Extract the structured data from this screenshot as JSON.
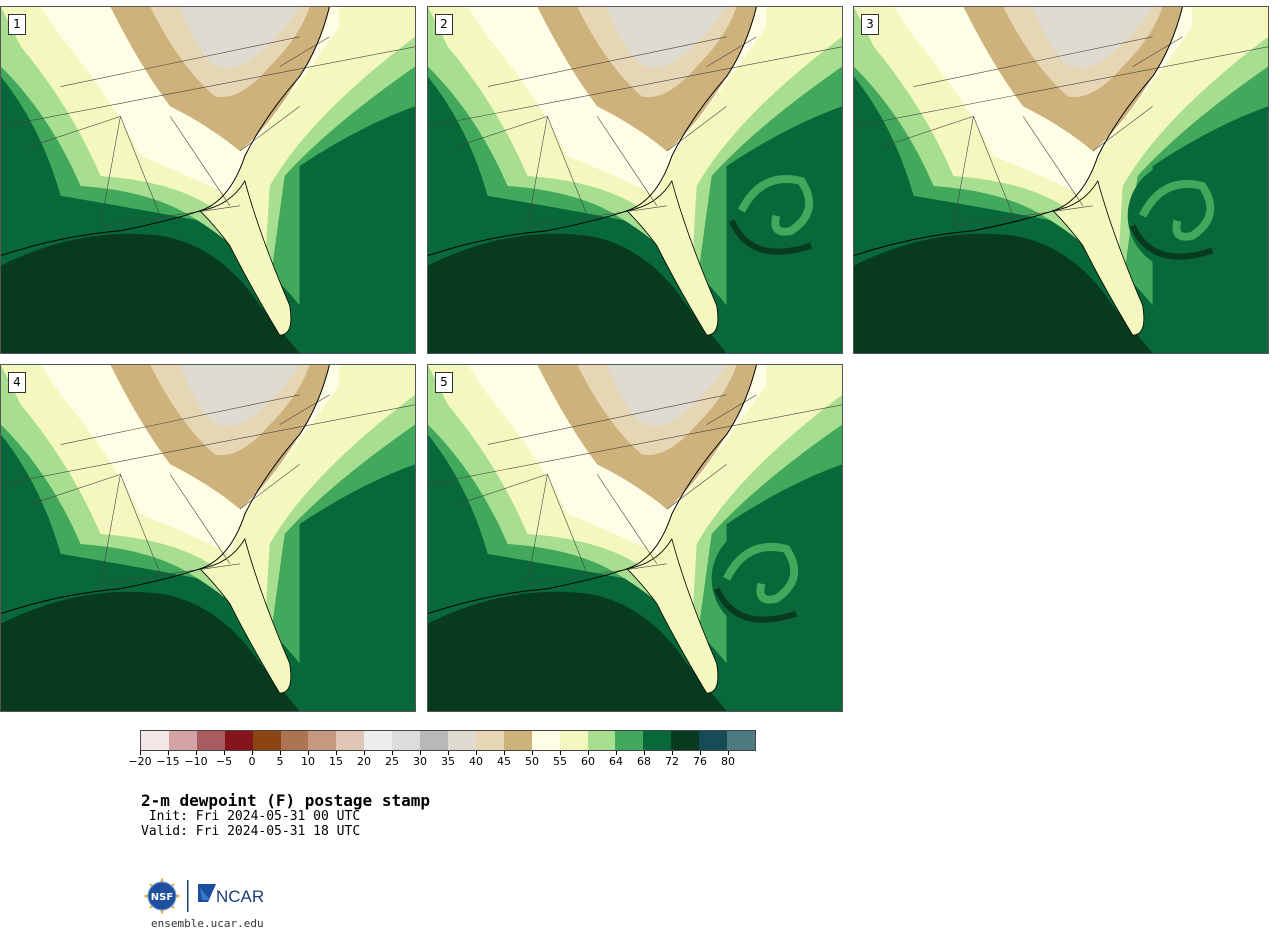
{
  "panels": [
    {
      "label": "1"
    },
    {
      "label": "2"
    },
    {
      "label": "3"
    },
    {
      "label": "4"
    },
    {
      "label": "5"
    }
  ],
  "colorbar": {
    "colors": [
      "#f3e8e8",
      "#d3a3a6",
      "#a85c60",
      "#86141c",
      "#8b4513",
      "#ad7452",
      "#c4997e",
      "#e0c6b6",
      "#eeeeee",
      "#dddddd",
      "#b8b8b8",
      "#dedcd0",
      "#e6d6b4",
      "#cdb27c",
      "#fefee6",
      "#f5f8be",
      "#a8de90",
      "#42a85b",
      "#08683a",
      "#083a20",
      "#164c55",
      "#4d7b80"
    ],
    "tick_labels": [
      "−20",
      "−15",
      "−10",
      "−5",
      "0",
      "5",
      "10",
      "15",
      "20",
      "25",
      "30",
      "35",
      "40",
      "45",
      "50",
      "55",
      "60",
      "64",
      "68",
      "72",
      "76",
      "80"
    ]
  },
  "title": "2-m dewpoint (F) postage stamp",
  "init_line": " Init: Fri 2024-05-31 00 UTC",
  "valid_line": "Valid: Fri 2024-05-31 18 UTC",
  "logos": {
    "nsf": "NSF",
    "ncar": "NCAR"
  },
  "site": "ensemble.ucar.edu"
}
